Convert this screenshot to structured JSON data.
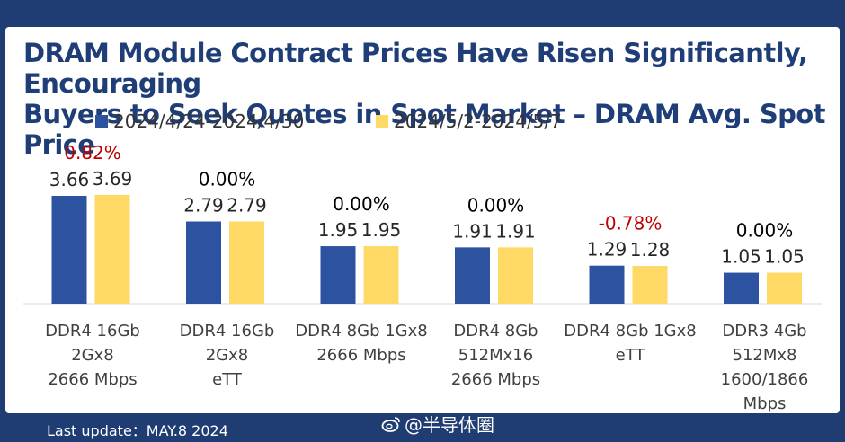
{
  "colors": {
    "series1": "#2c52a0",
    "series2": "#ffd966",
    "negative_pct": "#c00000",
    "positive_pct": "#c00000",
    "neutral_pct": "#000000"
  },
  "chart_data": {
    "type": "bar",
    "title": "DRAM Module Contract Prices Have Risen Significantly, Encouraging Buyers to Seek Quotes in Spot Market – DRAM Avg. Spot Price",
    "title_line1": "DRAM Module Contract Prices Have Risen Significantly, Encouraging",
    "title_line2": "Buyers to Seek Quotes in Spot Market – DRAM Avg. Spot Price",
    "categories": [
      [
        "DDR4 16Gb",
        "2Gx8",
        "2666 Mbps"
      ],
      [
        "DDR4 16Gb",
        "2Gx8",
        "eTT"
      ],
      [
        "DDR4 8Gb 1Gx8",
        "2666 Mbps"
      ],
      [
        "DDR4 8Gb",
        "512Mx16",
        "2666 Mbps"
      ],
      [
        "DDR4 8Gb 1Gx8",
        "eTT"
      ],
      [
        "DDR3 4Gb",
        "512Mx8",
        "1600/1866",
        "Mbps"
      ]
    ],
    "series": [
      {
        "name": "2024/4/24-2024/4/30",
        "values": [
          3.66,
          2.79,
          1.95,
          1.91,
          1.29,
          1.05
        ]
      },
      {
        "name": "2024/5/2-2024/5/7",
        "values": [
          3.69,
          2.79,
          1.95,
          1.91,
          1.28,
          1.05
        ]
      }
    ],
    "value_labels": [
      [
        "3.66",
        "2.79",
        "1.95",
        "1.91",
        "1.29",
        "1.05"
      ],
      [
        "3.69",
        "2.79",
        "1.95",
        "1.91",
        "1.28",
        "1.05"
      ]
    ],
    "change_labels": [
      "0.82%",
      "0.00%",
      "0.00%",
      "0.00%",
      "-0.78%",
      "0.00%"
    ],
    "change_sign": [
      "up",
      "flat",
      "flat",
      "flat",
      "down",
      "flat"
    ],
    "xlabel": "",
    "ylabel": "",
    "ylim": [
      0,
      3.69
    ],
    "legend_position": "top",
    "grid": false
  },
  "footer": {
    "last_update": "Last update：MAY.8 2024"
  },
  "watermark": {
    "text": "@半导体圈"
  }
}
